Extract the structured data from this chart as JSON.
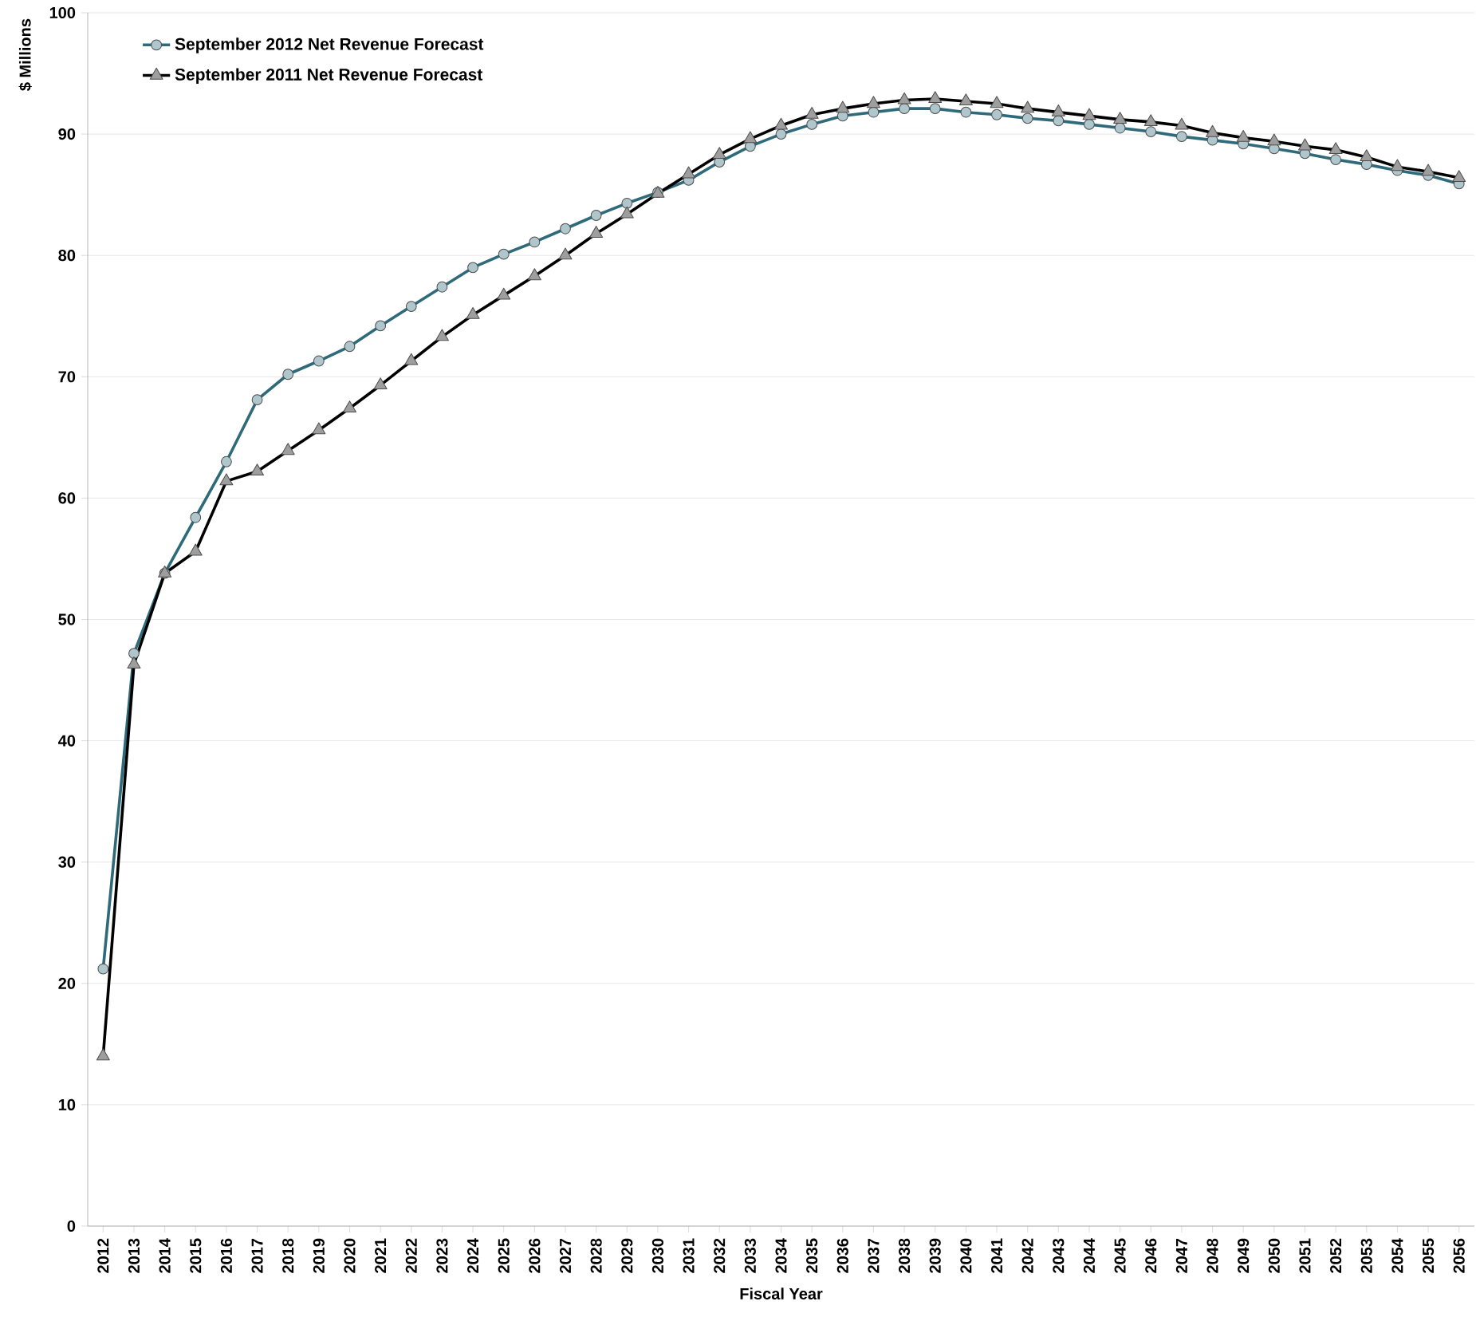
{
  "chart_data": {
    "type": "line",
    "xlabel": "Fiscal Year",
    "ylabel": "$ Millions",
    "categories": [
      "2012",
      "2013",
      "2014",
      "2015",
      "2016",
      "2017",
      "2018",
      "2019",
      "2020",
      "2021",
      "2022",
      "2023",
      "2024",
      "2025",
      "2026",
      "2027",
      "2028",
      "2029",
      "2030",
      "2031",
      "2032",
      "2033",
      "2034",
      "2035",
      "2036",
      "2037",
      "2038",
      "2039",
      "2040",
      "2041",
      "2042",
      "2043",
      "2044",
      "2045",
      "2046",
      "2047",
      "2048",
      "2049",
      "2050",
      "2051",
      "2052",
      "2053",
      "2054",
      "2055",
      "2056"
    ],
    "series": [
      {
        "name": "September 2012 Net Revenue Forecast",
        "color": "#2e6a7a",
        "marker": "circle",
        "values": [
          21.2,
          47.2,
          53.8,
          58.4,
          63.0,
          68.1,
          70.2,
          71.3,
          72.5,
          74.2,
          75.8,
          77.4,
          79.0,
          80.1,
          81.1,
          82.2,
          83.3,
          84.3,
          85.2,
          86.2,
          87.7,
          89.0,
          90.0,
          90.8,
          91.5,
          91.8,
          92.1,
          92.1,
          91.8,
          91.6,
          91.3,
          91.1,
          90.8,
          90.5,
          90.2,
          89.8,
          89.5,
          89.2,
          88.8,
          88.4,
          87.9,
          87.5,
          87.0,
          86.6,
          85.9
        ]
      },
      {
        "name": "September 2011 Net Revenue Forecast",
        "color": "#000000",
        "marker": "triangle",
        "values": [
          14.0,
          46.3,
          53.8,
          55.6,
          61.4,
          62.2,
          63.9,
          65.6,
          67.4,
          69.3,
          71.3,
          73.3,
          75.1,
          76.7,
          78.3,
          80.0,
          81.8,
          83.4,
          85.1,
          86.7,
          88.3,
          89.6,
          90.7,
          91.6,
          92.1,
          92.5,
          92.8,
          92.9,
          92.7,
          92.5,
          92.1,
          91.8,
          91.5,
          91.2,
          91.0,
          90.7,
          90.1,
          89.7,
          89.4,
          89.0,
          88.7,
          88.1,
          87.3,
          86.9,
          86.4
        ]
      }
    ],
    "ylim": [
      0,
      100
    ],
    "yticks": [
      0,
      10,
      20,
      30,
      40,
      50,
      60,
      70,
      80,
      90,
      100
    ],
    "grid": "y",
    "legend": "top left",
    "line_style": "solid"
  }
}
